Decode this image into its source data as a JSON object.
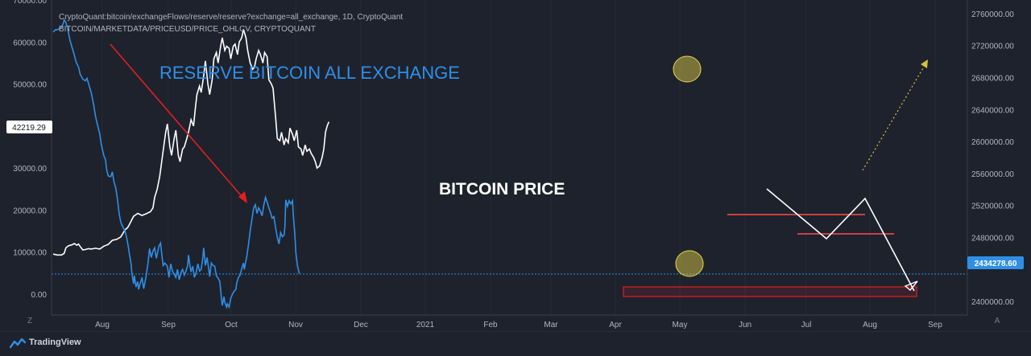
{
  "header": {
    "line1": "CryptoQuant:bitcoin/exchangeFlows/reserve/reserve?exchange=all_exchange, 1D, CryptoQuant",
    "line2": "BITCOIN/MARKETDATA/PRICEUSD/PRICE_OHLCV, CRYPTOQUANT"
  },
  "annotations": {
    "reserve_label": "RESERVE BITCOIN ALL EXCHANGE",
    "price_label": "BITCOIN PRICE"
  },
  "footer": {
    "brand": "TradingView",
    "left_corner": "Z",
    "right_corner": "A"
  },
  "colors": {
    "background": "#1e222d",
    "price_line": "#ffffff",
    "reserve_line": "#2f8fe6",
    "arrow_red": "#e02020",
    "hline_red": "#ff4d4d",
    "highlight_yellow": "#e8d84a",
    "dotted_yellow": "#d4c43a"
  },
  "chart_data": {
    "type": "line",
    "x_tick_labels": [
      "Aug",
      "Sep",
      "Oct",
      "Nov",
      "Dec",
      "2021",
      "Feb",
      "Mar",
      "Apr",
      "May",
      "Jun",
      "Jul",
      "Aug",
      "Sep"
    ],
    "left_axis": {
      "ticks": [
        "70000.00",
        "60000.00",
        "50000.00",
        "40000.00",
        "30000.00",
        "20000.00",
        "10000.00",
        "0.00"
      ],
      "ylim": [
        -5000,
        70000
      ],
      "current_value_label": "42219.29",
      "current_value": 42219.29
    },
    "right_axis": {
      "ticks": [
        "2760000.00",
        "2720000.00",
        "2680000.00",
        "2640000.00",
        "2600000.00",
        "2560000.00",
        "2520000.00",
        "2480000.00",
        "2400000.00"
      ],
      "ylim": [
        2383000,
        2777000
      ],
      "current_value_label": "2434278.60",
      "current_value": 2434278.6
    },
    "series": [
      {
        "axis": "left",
        "color": "#ffffff",
        "points": [
          [
            0,
            9500
          ],
          [
            5,
            9300
          ],
          [
            10,
            9300
          ],
          [
            13,
            9700
          ],
          [
            15,
            11000
          ],
          [
            18,
            11500
          ],
          [
            22,
            11700
          ],
          [
            25,
            12000
          ],
          [
            28,
            11600
          ],
          [
            30,
            11900
          ],
          [
            32,
            11300
          ],
          [
            35,
            10500
          ],
          [
            38,
            10600
          ],
          [
            42,
            10800
          ],
          [
            45,
            10700
          ],
          [
            50,
            10900
          ],
          [
            55,
            10700
          ],
          [
            60,
            11400
          ],
          [
            65,
            11800
          ],
          [
            70,
            12800
          ],
          [
            75,
            13000
          ],
          [
            80,
            13600
          ],
          [
            85,
            15300
          ],
          [
            88,
            15800
          ],
          [
            90,
            16500
          ],
          [
            95,
            18500
          ],
          [
            100,
            19200
          ],
          [
            105,
            18700
          ],
          [
            110,
            19100
          ],
          [
            115,
            19600
          ],
          [
            118,
            20500
          ],
          [
            120,
            23000
          ],
          [
            123,
            25000
          ],
          [
            126,
            28000
          ],
          [
            128,
            31000
          ],
          [
            130,
            34000
          ],
          [
            133,
            38500
          ],
          [
            135,
            40500
          ],
          [
            138,
            35000
          ],
          [
            140,
            33000
          ],
          [
            143,
            37000
          ],
          [
            145,
            39000
          ],
          [
            148,
            33000
          ],
          [
            150,
            31500
          ],
          [
            153,
            34500
          ],
          [
            155,
            35000
          ],
          [
            158,
            37000
          ],
          [
            160,
            38500
          ],
          [
            163,
            41500
          ],
          [
            166,
            40000
          ],
          [
            168,
            44000
          ],
          [
            170,
            47500
          ],
          [
            173,
            49500
          ],
          [
            175,
            48000
          ],
          [
            178,
            52000
          ],
          [
            180,
            55500
          ],
          [
            183,
            50000
          ],
          [
            185,
            47500
          ],
          [
            188,
            51000
          ],
          [
            190,
            56000
          ],
          [
            193,
            57500
          ],
          [
            195,
            55000
          ],
          [
            198,
            59000
          ],
          [
            200,
            61000
          ],
          [
            203,
            58000
          ],
          [
            205,
            59000
          ],
          [
            208,
            58500
          ],
          [
            210,
            56000
          ],
          [
            213,
            59000
          ],
          [
            215,
            59500
          ],
          [
            218,
            57000
          ],
          [
            220,
            60000
          ],
          [
            223,
            61000
          ],
          [
            225,
            63000
          ],
          [
            228,
            61000
          ],
          [
            230,
            58000
          ],
          [
            233,
            55000
          ],
          [
            236,
            53500
          ],
          [
            238,
            54000
          ],
          [
            240,
            56000
          ],
          [
            243,
            58000
          ],
          [
            245,
            57000
          ],
          [
            248,
            55000
          ],
          [
            250,
            57500
          ],
          [
            253,
            56500
          ],
          [
            255,
            51000
          ],
          [
            258,
            50000
          ],
          [
            260,
            49000
          ],
          [
            263,
            42000
          ],
          [
            265,
            37000
          ],
          [
            268,
            36500
          ],
          [
            270,
            38500
          ],
          [
            273,
            35500
          ],
          [
            275,
            37000
          ],
          [
            278,
            36000
          ],
          [
            280,
            39500
          ],
          [
            283,
            38000
          ],
          [
            285,
            36500
          ],
          [
            288,
            39000
          ],
          [
            290,
            35000
          ],
          [
            293,
            34500
          ],
          [
            295,
            33000
          ],
          [
            298,
            35500
          ],
          [
            300,
            34000
          ],
          [
            303,
            34500
          ],
          [
            305,
            33500
          ],
          [
            308,
            32500
          ],
          [
            310,
            31500
          ],
          [
            312,
            30000
          ],
          [
            315,
            30500
          ],
          [
            318,
            32500
          ],
          [
            320,
            34500
          ],
          [
            322,
            38500
          ],
          [
            324,
            40000
          ],
          [
            326,
            41000
          ]
        ]
      },
      {
        "axis": "right",
        "color": "#2f8fe6",
        "points": [
          [
            0,
            2737000
          ],
          [
            3,
            2740000
          ],
          [
            5,
            2739500
          ],
          [
            8,
            2742000
          ],
          [
            10,
            2743000
          ],
          [
            12,
            2748000
          ],
          [
            13,
            2752000
          ],
          [
            15,
            2749000
          ],
          [
            17,
            2742000
          ],
          [
            20,
            2726000
          ],
          [
            25,
            2708000
          ],
          [
            27,
            2700000
          ],
          [
            30,
            2693000
          ],
          [
            32,
            2684000
          ],
          [
            35,
            2678000
          ],
          [
            38,
            2676000
          ],
          [
            40,
            2679000
          ],
          [
            43,
            2668000
          ],
          [
            45,
            2661000
          ],
          [
            48,
            2645000
          ],
          [
            50,
            2632000
          ],
          [
            53,
            2618000
          ],
          [
            55,
            2610000
          ],
          [
            57,
            2596000
          ],
          [
            60,
            2582000
          ],
          [
            62,
            2577000
          ],
          [
            63,
            2566000
          ],
          [
            65,
            2557000
          ],
          [
            68,
            2556000
          ],
          [
            70,
            2562000
          ],
          [
            72,
            2549000
          ],
          [
            74,
            2542000
          ],
          [
            76,
            2528000
          ],
          [
            78,
            2510000
          ],
          [
            80,
            2499000
          ],
          [
            82,
            2494000
          ],
          [
            85,
            2488000
          ],
          [
            87,
            2479000
          ],
          [
            89,
            2468000
          ],
          [
            90,
            2460000
          ],
          [
            92,
            2448000
          ],
          [
            93,
            2436000
          ],
          [
            95,
            2422000
          ],
          [
            96,
            2432000
          ],
          [
            98,
            2418000
          ],
          [
            100,
            2425000
          ],
          [
            101,
            2415000
          ],
          [
            103,
            2423000
          ],
          [
            105,
            2430000
          ],
          [
            107,
            2416000
          ],
          [
            110,
            2432000
          ],
          [
            112,
            2447000
          ],
          [
            114,
            2466000
          ],
          [
            116,
            2455000
          ],
          [
            118,
            2463000
          ],
          [
            120,
            2467000
          ],
          [
            122,
            2454000
          ],
          [
            125,
            2469000
          ],
          [
            127,
            2473000
          ],
          [
            130,
            2445000
          ],
          [
            132,
            2448000
          ],
          [
            135,
            2444000
          ],
          [
            137,
            2430000
          ],
          [
            139,
            2447000
          ],
          [
            141,
            2438000
          ],
          [
            143,
            2434000
          ],
          [
            145,
            2430000
          ],
          [
            147,
            2440000
          ],
          [
            149,
            2427000
          ],
          [
            151,
            2436000
          ],
          [
            153,
            2440000
          ],
          [
            155,
            2433000
          ],
          [
            157,
            2438000
          ],
          [
            159,
            2445000
          ],
          [
            160,
            2458000
          ],
          [
            162,
            2443000
          ],
          [
            163,
            2437000
          ],
          [
            165,
            2444000
          ],
          [
            167,
            2430000
          ],
          [
            169,
            2436000
          ],
          [
            171,
            2447000
          ],
          [
            173,
            2438000
          ],
          [
            175,
            2440000
          ],
          [
            177,
            2455000
          ],
          [
            178,
            2467000
          ],
          [
            180,
            2445000
          ],
          [
            182,
            2455000
          ],
          [
            184,
            2440000
          ],
          [
            185,
            2431000
          ],
          [
            187,
            2448000
          ],
          [
            189,
            2445000
          ],
          [
            191,
            2444000
          ],
          [
            193,
            2432000
          ],
          [
            195,
            2429000
          ],
          [
            197,
            2425000
          ],
          [
            199,
            2403000
          ],
          [
            200,
            2395000
          ],
          [
            202,
            2406000
          ],
          [
            203,
            2399000
          ],
          [
            205,
            2393000
          ],
          [
            206,
            2397000
          ],
          [
            208,
            2393000
          ],
          [
            210,
            2404000
          ],
          [
            212,
            2409000
          ],
          [
            214,
            2413000
          ],
          [
            216,
            2415000
          ],
          [
            217,
            2423000
          ],
          [
            219,
            2430000
          ],
          [
            221,
            2433000
          ],
          [
            223,
            2441000
          ],
          [
            225,
            2448000
          ],
          [
            226,
            2440000
          ],
          [
            227,
            2446000
          ],
          [
            229,
            2457000
          ],
          [
            231,
            2472000
          ],
          [
            233,
            2488000
          ],
          [
            235,
            2503000
          ],
          [
            237,
            2517000
          ],
          [
            239,
            2521000
          ],
          [
            241,
            2510000
          ],
          [
            243,
            2517000
          ],
          [
            245,
            2513000
          ],
          [
            247,
            2507000
          ],
          [
            249,
            2520000
          ],
          [
            251,
            2530000
          ],
          [
            253,
            2524000
          ],
          [
            255,
            2517000
          ],
          [
            257,
            2511000
          ],
          [
            259,
            2504000
          ],
          [
            261,
            2506000
          ],
          [
            263,
            2492000
          ],
          [
            265,
            2480000
          ],
          [
            267,
            2472000
          ],
          [
            269,
            2486000
          ],
          [
            271,
            2481000
          ],
          [
            273,
            2483000
          ],
          [
            274,
            2493000
          ],
          [
            275,
            2527000
          ],
          [
            277,
            2519000
          ],
          [
            279,
            2526000
          ],
          [
            281,
            2522000
          ],
          [
            283,
            2526000
          ],
          [
            284,
            2507000
          ],
          [
            286,
            2480000
          ],
          [
            287,
            2460000
          ],
          [
            289,
            2444000
          ],
          [
            291,
            2435000
          ]
        ]
      }
    ]
  }
}
